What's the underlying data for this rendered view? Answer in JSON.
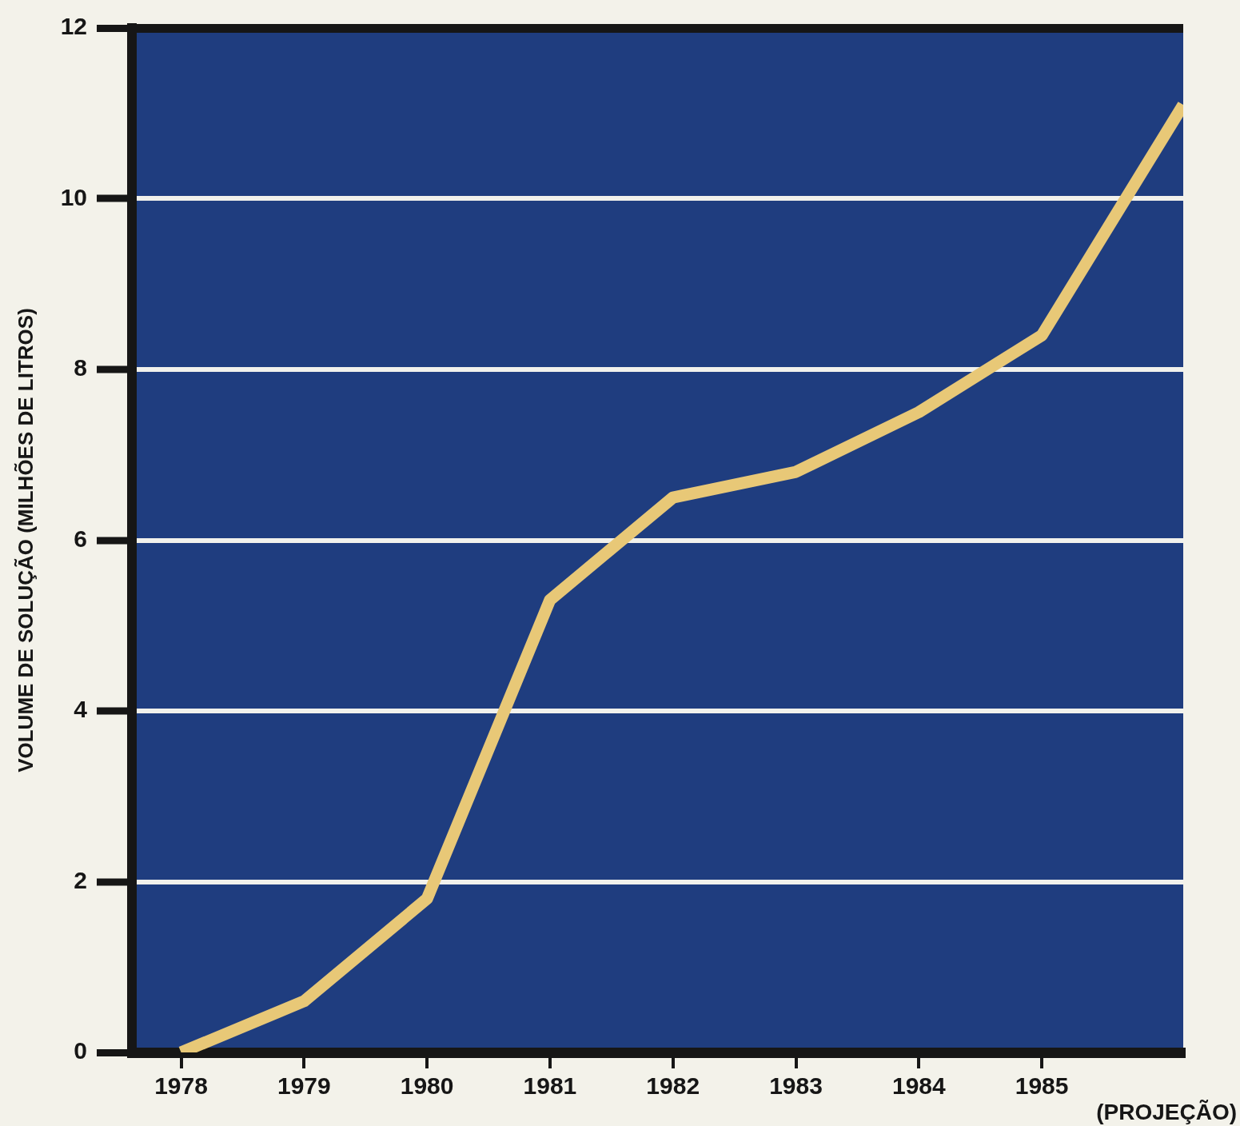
{
  "chart_data": {
    "type": "line",
    "ylabel": "VOLUME DE SOLUÇÃO (MILHÕES DE LITROS)",
    "annotations": [
      "(PROJEÇÃO)"
    ],
    "x": [
      1978,
      1979,
      1980,
      1981,
      1982,
      1983,
      1984,
      1985,
      1986.15
    ],
    "series": [
      {
        "color": "#e8c877",
        "values": [
          0,
          0.6,
          1.8,
          5.3,
          6.5,
          6.8,
          7.5,
          8.4,
          11.1
        ]
      }
    ],
    "xlim": [
      1977.6,
      1986.15
    ],
    "xticks": [
      1978,
      1979,
      1980,
      1981,
      1982,
      1983,
      1984,
      1985
    ],
    "ylim": [
      0,
      12
    ],
    "yticks": [
      0,
      2,
      4,
      6,
      8,
      10,
      12
    ],
    "grid": "y"
  }
}
